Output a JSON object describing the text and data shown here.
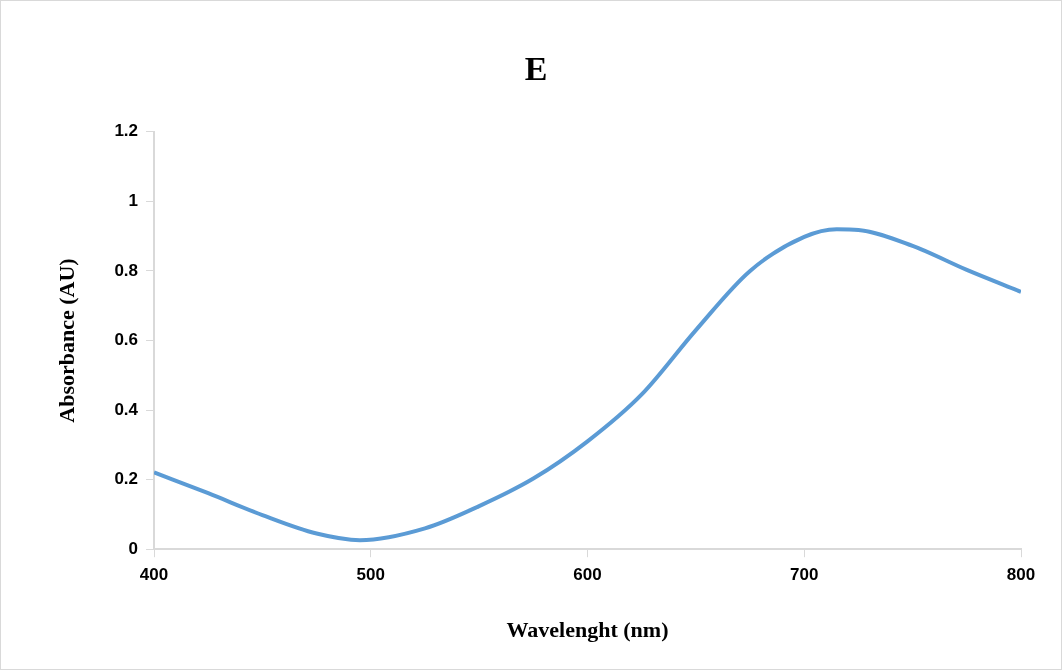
{
  "chart_data": {
    "type": "line",
    "title": "E",
    "xlabel": "Wavelenght (nm)",
    "ylabel": "Absorbance (AU)",
    "x": [
      400,
      425,
      450,
      475,
      495,
      525,
      550,
      575,
      600,
      625,
      650,
      675,
      700,
      715,
      725,
      750,
      775,
      800
    ],
    "series": [
      {
        "color": "#5b9bd5",
        "values": [
          0.221,
          0.161,
          0.098,
          0.045,
          0.026,
          0.06,
          0.124,
          0.203,
          0.31,
          0.445,
          0.63,
          0.8,
          0.898,
          0.92,
          0.918,
          0.872,
          0.803,
          0.74
        ]
      }
    ],
    "xlim": [
      400,
      800
    ],
    "xticks": [
      400,
      500,
      600,
      700,
      800
    ],
    "ylim": [
      0,
      1.2
    ],
    "yticks": [
      0,
      0.2,
      0.4,
      0.6,
      0.8,
      1,
      1.2
    ],
    "grid": false,
    "legend": false,
    "marker": "none",
    "line_style": "solid"
  }
}
